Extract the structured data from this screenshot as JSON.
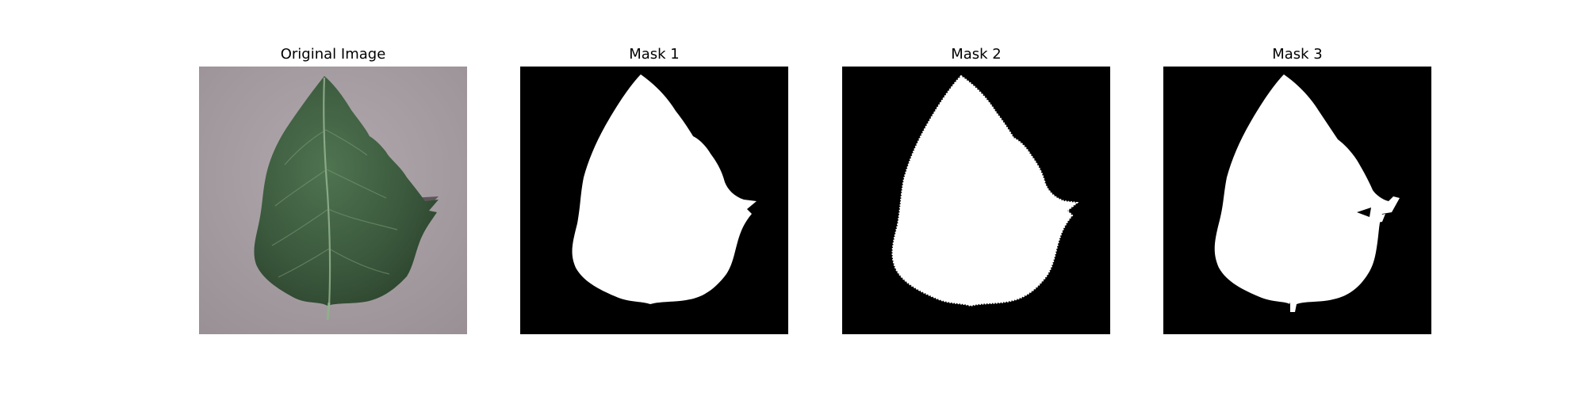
{
  "figure": {
    "panels": [
      {
        "title": "Original Image"
      },
      {
        "title": "Mask 1"
      },
      {
        "title": "Mask 2"
      },
      {
        "title": "Mask 3"
      }
    ]
  },
  "colors": {
    "background": "#ffffff",
    "mask_background": "#000000",
    "mask_foreground": "#ffffff",
    "photo_background": "#a69ea2",
    "leaf_green": "#3f5f3f",
    "leaf_vein": "#9ab894"
  }
}
